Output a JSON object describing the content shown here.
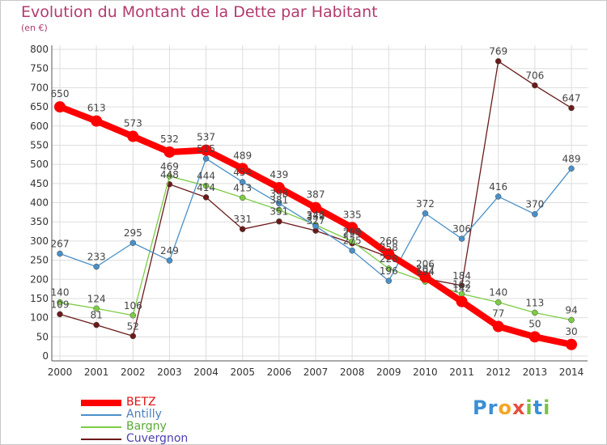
{
  "title": "Evolution du Montant de la Dette par Habitant",
  "unit_label": "(en €)",
  "logo": {
    "text": "Proxiti",
    "letters": [
      "P",
      "r",
      "o",
      "x",
      "i",
      "t",
      "i"
    ],
    "colors": [
      "#3a8fd6",
      "#3a8fd6",
      "#f5a623",
      "#e84c3d",
      "#7cc242",
      "#3a8fd6",
      "#7cc242"
    ]
  },
  "chart_data": {
    "type": "line",
    "title": "Evolution du Montant de la Dette par Habitant",
    "ylabel": "(en €)",
    "xlabel": "",
    "ylim": [
      0,
      800
    ],
    "yticks": [
      0,
      50,
      100,
      150,
      200,
      250,
      300,
      350,
      400,
      450,
      500,
      550,
      600,
      650,
      700,
      750,
      800
    ],
    "x": [
      "2000",
      "2001",
      "2002",
      "2003",
      "2004",
      "2005",
      "2006",
      "2007",
      "2008",
      "2009",
      "2010",
      "2011",
      "2012",
      "2013",
      "2014"
    ],
    "grid": true,
    "legend_position": "bottom-left",
    "series": [
      {
        "name": "BETZ",
        "color": "#ff0000",
        "values": [
          650,
          613,
          573,
          532,
          537,
          489,
          439,
          387,
          335,
          266,
          206,
          142,
          77,
          50,
          30
        ]
      },
      {
        "name": "Antilly",
        "color": "#4a90c8",
        "values": [
          267,
          233,
          295,
          249,
          515,
          454,
          398,
          339,
          275,
          196,
          372,
          306,
          416,
          370,
          489
        ]
      },
      {
        "name": "Bargny",
        "color": "#7ccc44",
        "values": [
          140,
          124,
          106,
          469,
          444,
          413,
          381,
          342,
          299,
          228,
          194,
          162,
          140,
          113,
          94
        ]
      },
      {
        "name": "Cuvergnon",
        "color": "#6b1a1a",
        "values": [
          109,
          81,
          52,
          448,
          414,
          331,
          351,
          327,
          294,
          258,
          202,
          184,
          769,
          706,
          647
        ]
      }
    ]
  }
}
